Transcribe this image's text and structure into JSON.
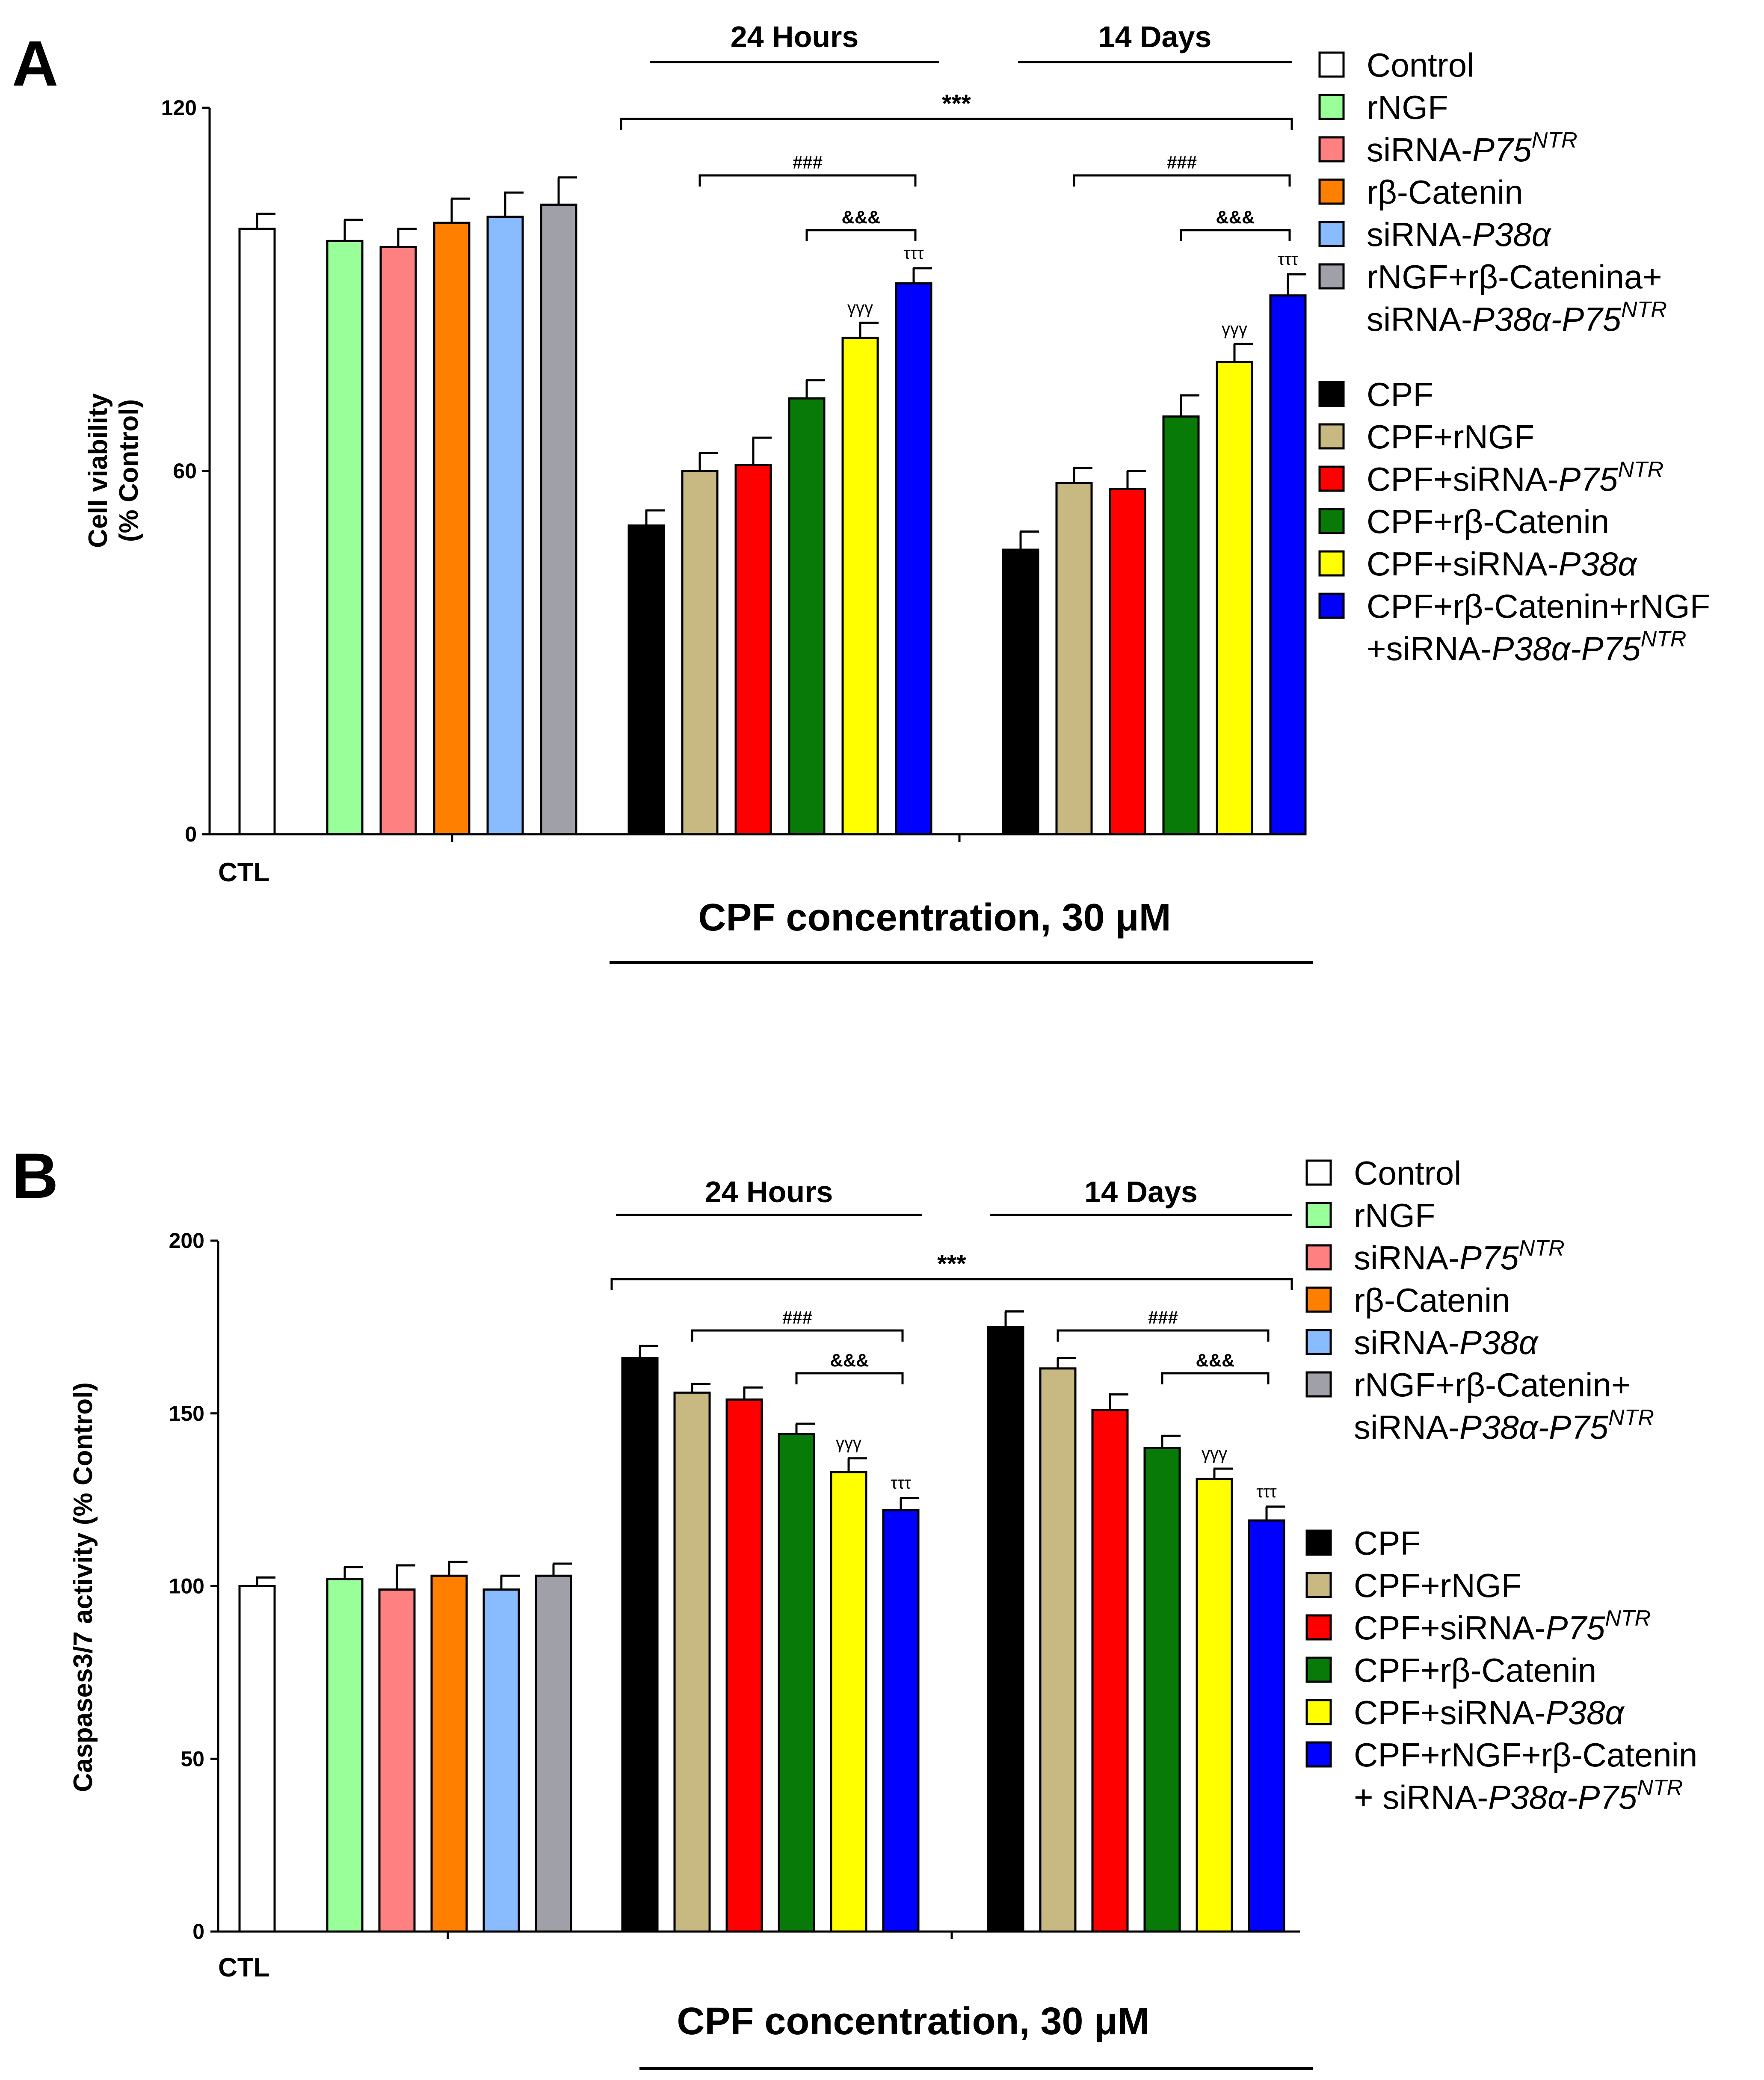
{
  "chart_data": [
    {
      "panel": "A",
      "type": "bar",
      "ylabel": [
        "Cell viability",
        "(% Control)"
      ],
      "ylim": [
        0,
        120
      ],
      "yticks": [
        0,
        60,
        120
      ],
      "ctl_label": "CTL",
      "xlabel": "CPF concentration, 30 μM",
      "group_labels": [
        "24 Hours",
        "14 Days"
      ],
      "significance": [
        {
          "text": "***",
          "from": "24 Hours:CPF",
          "to": "14 Days:CPF+rβ-Catenin+rNGF+siRNA-P38α-P75NTR"
        },
        {
          "text": "###",
          "from": "24 Hours:CPF+rNGF",
          "to": "24 Hours:CPF+rβ-Catenin+rNGF+siRNA-P38α-P75NTR"
        },
        {
          "text": "&&&",
          "from": "24 Hours:CPF+rβ-Catenin",
          "to": "24 Hours:CPF+rβ-Catenin+rNGF+siRNA-P38α-P75NTR"
        },
        {
          "text": "###",
          "from": "14 Days:CPF+rNGF",
          "to": "14 Days:CPF+rβ-Catenin+rNGF+siRNA-P38α-P75NTR"
        },
        {
          "text": "&&&",
          "from": "14 Days:CPF+rβ-Catenin",
          "to": "14 Days:CPF+rβ-Catenin+rNGF+siRNA-P38α-P75NTR"
        }
      ],
      "legend": {
        "placement": "right",
        "group1": [
          {
            "color": "#ffffff",
            "parts": [
              [
                "n",
                "Control"
              ]
            ]
          },
          {
            "color": "#99ff99",
            "parts": [
              [
                "n",
                "rNGF"
              ]
            ]
          },
          {
            "color": "#ff8080",
            "parts": [
              [
                "n",
                "siRNA-"
              ],
              [
                "i",
                "P75"
              ],
              [
                "si",
                "NTR"
              ]
            ]
          },
          {
            "color": "#ff8000",
            "parts": [
              [
                "n",
                "rβ-Catenin"
              ]
            ]
          },
          {
            "color": "#88bbff",
            "parts": [
              [
                "n",
                "siRNA-"
              ],
              [
                "i",
                "P38α"
              ]
            ]
          },
          {
            "color": "#a0a0a8",
            "parts": [
              [
                "n",
                "rNGF+rβ-Catenina+"
              ]
            ]
          },
          {
            "color": null,
            "parts": [
              [
                "n",
                "siRNA-"
              ],
              [
                "i",
                "P38α-P75"
              ],
              [
                "si",
                "NTR"
              ]
            ]
          }
        ],
        "group2": [
          {
            "color": "#000000",
            "parts": [
              [
                "n",
                "CPF"
              ]
            ]
          },
          {
            "color": "#c8b882",
            "parts": [
              [
                "n",
                "CPF+rNGF"
              ]
            ]
          },
          {
            "color": "#ff0000",
            "parts": [
              [
                "n",
                "CPF+siRNA-"
              ],
              [
                "i",
                "P75"
              ],
              [
                "si",
                "NTR"
              ]
            ]
          },
          {
            "color": "#087a08",
            "parts": [
              [
                "n",
                "CPF+rβ-Catenin"
              ]
            ]
          },
          {
            "color": "#ffff00",
            "parts": [
              [
                "n",
                "CPF+siRNA-"
              ],
              [
                "i",
                "P38α"
              ]
            ]
          },
          {
            "color": "#0000ff",
            "parts": [
              [
                "n",
                "CPF+rβ-Catenin+rNGF"
              ]
            ]
          },
          {
            "color": null,
            "parts": [
              [
                "n",
                "+siRNA-"
              ],
              [
                "i",
                "P38α-P75"
              ],
              [
                "si",
                "NTR"
              ]
            ]
          }
        ]
      },
      "series": [
        {
          "group": "CTL",
          "name": "Control",
          "color": "#ffffff",
          "value": 100,
          "error": 2.5
        },
        {
          "group": "CTL",
          "name": "rNGF",
          "color": "#99ff99",
          "value": 98,
          "error": 3.5
        },
        {
          "group": "CTL",
          "name": "siRNA-P75NTR",
          "color": "#ff8080",
          "value": 97,
          "error": 3.0
        },
        {
          "group": "CTL",
          "name": "rβ-Catenin",
          "color": "#ff8000",
          "value": 101,
          "error": 4.0
        },
        {
          "group": "CTL",
          "name": "siRNA-P38α",
          "color": "#88bbff",
          "value": 102,
          "error": 4.0
        },
        {
          "group": "CTL",
          "name": "rNGF+rβ-Catenina+siRNA-P38α-P75NTR",
          "color": "#a0a0a8",
          "value": 104,
          "error": 4.5
        },
        {
          "group": "24 Hours",
          "name": "CPF",
          "color": "#000000",
          "value": 51,
          "error": 2.5,
          "sym": ""
        },
        {
          "group": "24 Hours",
          "name": "CPF+rNGF",
          "color": "#c8b882",
          "value": 60,
          "error": 3.0,
          "sym": ""
        },
        {
          "group": "24 Hours",
          "name": "CPF+siRNA-P75NTR",
          "color": "#ff0000",
          "value": 61,
          "error": 4.5,
          "sym": ""
        },
        {
          "group": "24 Hours",
          "name": "CPF+rβ-Catenin",
          "color": "#087a08",
          "value": 72,
          "error": 3.0,
          "sym": ""
        },
        {
          "group": "24 Hours",
          "name": "CPF+siRNA-P38α",
          "color": "#ffff00",
          "value": 82,
          "error": 2.5,
          "sym": "γγγ"
        },
        {
          "group": "24 Hours",
          "name": "CPF+rβ-Catenin+rNGF+siRNA-P38α-P75NTR",
          "color": "#0000ff",
          "value": 91,
          "error": 2.5,
          "sym": "τττ"
        },
        {
          "group": "14 Days",
          "name": "CPF",
          "color": "#000000",
          "value": 47,
          "error": 3.0,
          "sym": ""
        },
        {
          "group": "14 Days",
          "name": "CPF+rNGF",
          "color": "#c8b882",
          "value": 58,
          "error": 2.5,
          "sym": ""
        },
        {
          "group": "14 Days",
          "name": "CPF+siRNA-P75NTR",
          "color": "#ff0000",
          "value": 57,
          "error": 3.0,
          "sym": ""
        },
        {
          "group": "14 Days",
          "name": "CPF+rβ-Catenin",
          "color": "#087a08",
          "value": 69,
          "error": 3.5,
          "sym": ""
        },
        {
          "group": "14 Days",
          "name": "CPF+siRNA-P38α",
          "color": "#ffff00",
          "value": 78,
          "error": 3.0,
          "sym": "γγγ"
        },
        {
          "group": "14 Days",
          "name": "CPF+rβ-Catenin+rNGF+siRNA-P38α-P75NTR",
          "color": "#0000ff",
          "value": 89,
          "error": 3.5,
          "sym": "τττ"
        }
      ]
    },
    {
      "panel": "B",
      "type": "bar",
      "ylabel": [
        "Caspases3/7 activity (% Control)"
      ],
      "ylim": [
        0,
        200
      ],
      "yticks": [
        0,
        50,
        100,
        150,
        200
      ],
      "ctl_label": "CTL",
      "xlabel": "CPF concentration, 30 μM",
      "group_labels": [
        "24 Hours",
        "14 Days"
      ],
      "significance": [
        {
          "text": "***",
          "from": "24 Hours:CPF",
          "to": "14 Days:CPF+rNGF+rβ-Catenin+siRNA-P38α-P75NTR"
        },
        {
          "text": "###",
          "from": "24 Hours:CPF+rNGF",
          "to": "24 Hours:CPF+rNGF+rβ-Catenin+siRNA-P38α-P75NTR"
        },
        {
          "text": "&&&",
          "from": "24 Hours:CPF+rβ-Catenin",
          "to": "24 Hours:CPF+rNGF+rβ-Catenin+siRNA-P38α-P75NTR"
        },
        {
          "text": "###",
          "from": "14 Days:CPF+rNGF",
          "to": "14 Days:CPF+rNGF+rβ-Catenin+siRNA-P38α-P75NTR"
        },
        {
          "text": "&&&",
          "from": "14 Days:CPF+rβ-Catenin",
          "to": "14 Days:CPF+rNGF+rβ-Catenin+siRNA-P38α-P75NTR"
        }
      ],
      "legend": {
        "placement": "right",
        "group1": [
          {
            "color": "#ffffff",
            "parts": [
              [
                "n",
                "Control"
              ]
            ]
          },
          {
            "color": "#99ff99",
            "parts": [
              [
                "n",
                "rNGF"
              ]
            ]
          },
          {
            "color": "#ff8080",
            "parts": [
              [
                "n",
                "siRNA-"
              ],
              [
                "i",
                "P75"
              ],
              [
                "si",
                "NTR"
              ]
            ]
          },
          {
            "color": "#ff8000",
            "parts": [
              [
                "n",
                "rβ-Catenin"
              ]
            ]
          },
          {
            "color": "#88bbff",
            "parts": [
              [
                "n",
                "siRNA-"
              ],
              [
                "i",
                "P38α"
              ]
            ]
          },
          {
            "color": "#a0a0a8",
            "parts": [
              [
                "n",
                "rNGF+rβ-Catenin+"
              ]
            ]
          },
          {
            "color": null,
            "parts": [
              [
                "n",
                "siRNA-"
              ],
              [
                "i",
                "P38α-P75"
              ],
              [
                "si",
                "NTR"
              ]
            ]
          }
        ],
        "group2": [
          {
            "color": "#000000",
            "parts": [
              [
                "n",
                "CPF"
              ]
            ]
          },
          {
            "color": "#c8b882",
            "parts": [
              [
                "n",
                "CPF+rNGF"
              ]
            ]
          },
          {
            "color": "#ff0000",
            "parts": [
              [
                "n",
                "CPF+siRNA-"
              ],
              [
                "i",
                "P75"
              ],
              [
                "si",
                "NTR"
              ]
            ]
          },
          {
            "color": "#087a08",
            "parts": [
              [
                "n",
                "CPF+rβ-Catenin"
              ]
            ]
          },
          {
            "color": "#ffff00",
            "parts": [
              [
                "n",
                "CPF+siRNA-"
              ],
              [
                "i",
                "P38α"
              ]
            ]
          },
          {
            "color": "#0000ff",
            "parts": [
              [
                "n",
                "CPF+rNGF+rβ-Catenin"
              ]
            ]
          },
          {
            "color": null,
            "parts": [
              [
                "n",
                "+ siRNA-"
              ],
              [
                "i",
                "P38α-P75"
              ],
              [
                "si",
                "NTR"
              ]
            ]
          }
        ]
      },
      "series": [
        {
          "group": "CTL",
          "name": "Control",
          "color": "#ffffff",
          "value": 100,
          "error": 2.5
        },
        {
          "group": "CTL",
          "name": "rNGF",
          "color": "#99ff99",
          "value": 102,
          "error": 3.5
        },
        {
          "group": "CTL",
          "name": "siRNA-P75NTR",
          "color": "#ff8080",
          "value": 99,
          "error": 7.0
        },
        {
          "group": "CTL",
          "name": "rβ-Catenin",
          "color": "#ff8000",
          "value": 103,
          "error": 4.0
        },
        {
          "group": "CTL",
          "name": "siRNA-P38α",
          "color": "#88bbff",
          "value": 99,
          "error": 4.0
        },
        {
          "group": "CTL",
          "name": "rNGF+rβ-Catenin+siRNA-P38α-P75NTR",
          "color": "#a0a0a8",
          "value": 103,
          "error": 3.5
        },
        {
          "group": "24 Hours",
          "name": "CPF",
          "color": "#000000",
          "value": 166,
          "error": 3.5,
          "sym": ""
        },
        {
          "group": "24 Hours",
          "name": "CPF+rNGF",
          "color": "#c8b882",
          "value": 156,
          "error": 2.5,
          "sym": ""
        },
        {
          "group": "24 Hours",
          "name": "CPF+siRNA-P75NTR",
          "color": "#ff0000",
          "value": 154,
          "error": 3.5,
          "sym": ""
        },
        {
          "group": "24 Hours",
          "name": "CPF+rβ-Catenin",
          "color": "#087a08",
          "value": 144,
          "error": 3.0,
          "sym": ""
        },
        {
          "group": "24 Hours",
          "name": "CPF+siRNA-P38α",
          "color": "#ffff00",
          "value": 133,
          "error": 4.0,
          "sym": "γγγ"
        },
        {
          "group": "24 Hours",
          "name": "CPF+rNGF+rβ-Catenin+siRNA-P38α-P75NTR",
          "color": "#0000ff",
          "value": 122,
          "error": 3.5,
          "sym": "τττ"
        },
        {
          "group": "14 Days",
          "name": "CPF",
          "color": "#000000",
          "value": 175,
          "error": 4.5,
          "sym": ""
        },
        {
          "group": "14 Days",
          "name": "CPF+rNGF",
          "color": "#c8b882",
          "value": 163,
          "error": 3.0,
          "sym": ""
        },
        {
          "group": "14 Days",
          "name": "CPF+siRNA-P75NTR",
          "color": "#ff0000",
          "value": 151,
          "error": 4.5,
          "sym": ""
        },
        {
          "group": "14 Days",
          "name": "CPF+rβ-Catenin",
          "color": "#087a08",
          "value": 140,
          "error": 3.5,
          "sym": ""
        },
        {
          "group": "14 Days",
          "name": "CPF+siRNA-P38α",
          "color": "#ffff00",
          "value": 131,
          "error": 3.0,
          "sym": "γγγ"
        },
        {
          "group": "14 Days",
          "name": "CPF+rNGF+rβ-Catenin+siRNA-P38α-P75NTR",
          "color": "#0000ff",
          "value": 119,
          "error": 4.0,
          "sym": "τττ"
        }
      ]
    }
  ]
}
